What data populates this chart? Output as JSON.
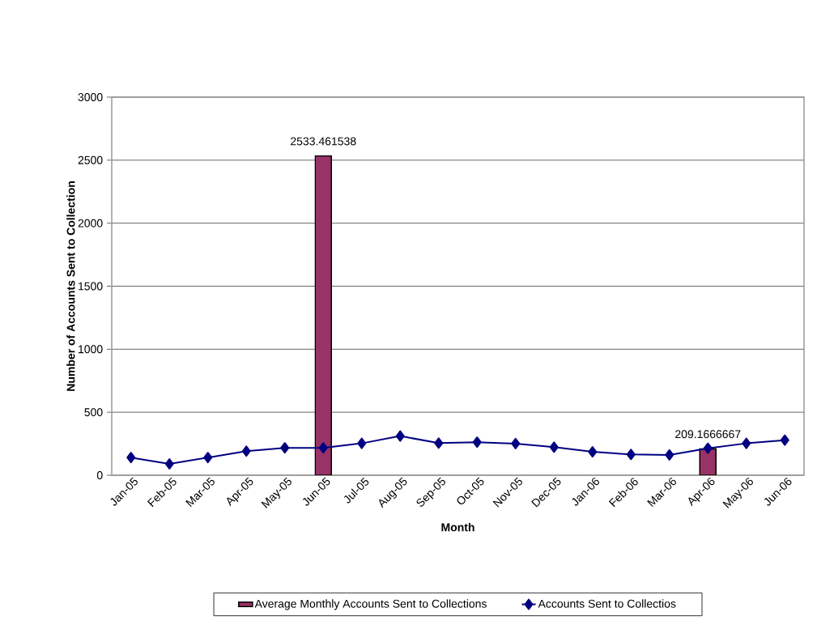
{
  "chart_data": {
    "type": "line",
    "xlabel": "Month",
    "ylabel": "Number of Accounts Sent to Collection",
    "categories": [
      "Jan-05",
      "Feb-05",
      "Mar-05",
      "Apr-05",
      "May-05",
      "Jun-05",
      "Jul-05",
      "Aug-05",
      "Sep-05",
      "Oct-05",
      "Nov-05",
      "Dec-05",
      "Jan-06",
      "Feb-06",
      "Mar-06",
      "Apr-06",
      "May-06",
      "Jun-06"
    ],
    "series": [
      {
        "name": "Average Monthly Accounts Sent to Collections",
        "type": "bar",
        "color": "#993366",
        "values": [
          null,
          null,
          null,
          null,
          null,
          2533.461538,
          null,
          null,
          null,
          null,
          null,
          null,
          null,
          null,
          null,
          209.1666667,
          null,
          null
        ],
        "value_labels": [
          null,
          null,
          null,
          null,
          null,
          "2533.461538",
          null,
          null,
          null,
          null,
          null,
          null,
          null,
          null,
          null,
          "209.1666667",
          null,
          null
        ]
      },
      {
        "name": "Accounts Sent to Collectios",
        "color": "#000080",
        "marker": "diamond",
        "values": [
          140,
          90,
          140,
          191,
          217,
          217,
          253,
          311,
          255,
          262,
          251,
          223,
          186,
          165,
          161,
          214,
          253,
          278
        ]
      }
    ],
    "ylim": [
      0,
      3000
    ],
    "yticks": [
      0,
      500,
      1000,
      1500,
      2000,
      2500,
      3000
    ],
    "grid": "y",
    "legend": "bottom"
  }
}
